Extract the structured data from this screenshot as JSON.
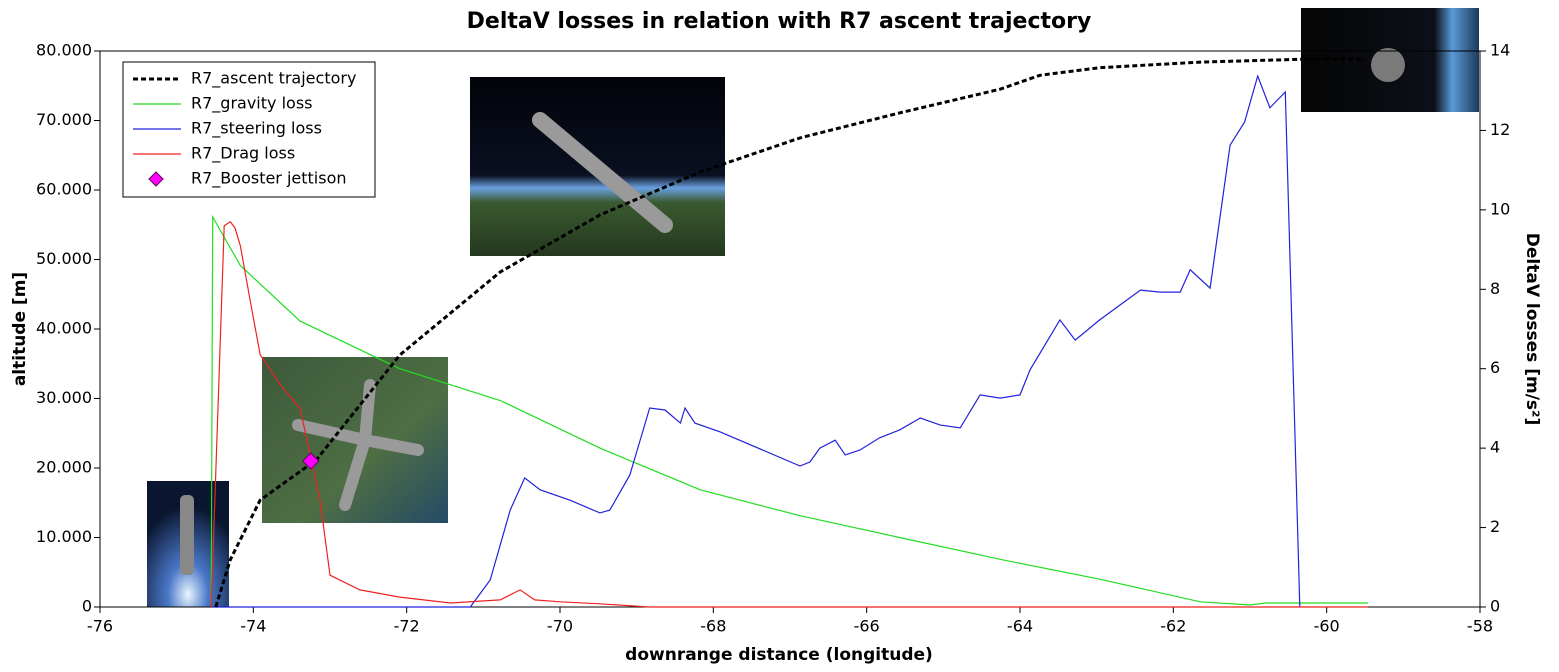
{
  "chart_data": {
    "type": "line",
    "title": "DeltaV losses in relation with R7 ascent trajectory",
    "xlabel": "downrange distance (longitude)",
    "ylabel": "altitude [m]",
    "y2label": "DeltaV losses [m/s²]",
    "xlim": [
      -76,
      -58
    ],
    "xticks": [
      -76,
      -74,
      -72,
      -70,
      -68,
      -66,
      -64,
      -62,
      -60,
      -58
    ],
    "ylim": [
      0,
      80000
    ],
    "yticks": [
      0,
      {
        "value": 10000,
        "label": "10.000"
      },
      {
        "value": 20000,
        "label": "20.000"
      },
      {
        "value": 30000,
        "label": "30.000"
      },
      {
        "value": 40000,
        "label": "40.000"
      },
      {
        "value": 50000,
        "label": "50.000"
      },
      {
        "value": 60000,
        "label": "60.000"
      },
      {
        "value": 70000,
        "label": "70.000"
      },
      {
        "value": 80000,
        "label": "80.000"
      }
    ],
    "y2lim": [
      0,
      14
    ],
    "y2ticks": [
      0,
      2,
      4,
      6,
      8,
      10,
      12,
      14
    ],
    "legend": "upper left",
    "series": [
      {
        "name": "R7_ascent trajectory",
        "color": "#000000",
        "dash": true,
        "x": [
          -74.49,
          -74.3,
          -73.91,
          -73.18,
          -72.09,
          -70.78,
          -69.48,
          -68.17,
          -66.87,
          -65.57,
          -64.26,
          -63.74,
          -62.96,
          -61.65,
          -60.35,
          -59.5
        ],
        "values": [
          0,
          6800,
          15400,
          21150,
          36260,
          48200,
          56400,
          62600,
          67500,
          71100,
          74500,
          76500,
          77600,
          78400,
          78800,
          78800
        ]
      },
      {
        "name": "R7_gravity loss",
        "color": "#22dd22",
        "axis": "y2",
        "x": [
          -74.55,
          -74.53,
          -74.17,
          -73.39,
          -72.09,
          -70.78,
          -69.48,
          -68.17,
          -66.87,
          -65.57,
          -64.26,
          -62.96,
          -61.65,
          -61.0,
          -60.8,
          -59.46
        ],
        "values": [
          0,
          9.82,
          8.6,
          7.2,
          6.0,
          5.2,
          4.0,
          2.95,
          2.3,
          1.75,
          1.2,
          0.7,
          0.13,
          0.05,
          0.1,
          0.1
        ]
      },
      {
        "name": "R7_steering loss",
        "color": "#2222dd",
        "axis": "y2",
        "x": [
          -74.55,
          -71.17,
          -70.91,
          -70.65,
          -70.46,
          -70.26,
          -69.87,
          -69.48,
          -69.35,
          -69.09,
          -68.83,
          -68.63,
          -68.43,
          -68.37,
          -68.24,
          -67.91,
          -66.87,
          -66.74,
          -66.61,
          -66.41,
          -66.28,
          -66.09,
          -65.83,
          -65.57,
          -65.3,
          -65.04,
          -64.78,
          -64.52,
          -64.26,
          -64.0,
          -63.87,
          -63.48,
          -63.28,
          -62.96,
          -62.43,
          -62.17,
          -61.91,
          -61.78,
          -61.52,
          -61.26,
          -61.07,
          -60.9,
          -60.74,
          -60.54,
          -60.35
        ],
        "values": [
          0,
          0,
          0.68,
          2.44,
          3.25,
          2.95,
          2.69,
          2.37,
          2.44,
          3.32,
          5.01,
          4.96,
          4.63,
          5.01,
          4.63,
          4.41,
          3.55,
          3.65,
          4.0,
          4.2,
          3.83,
          3.95,
          4.26,
          4.46,
          4.76,
          4.58,
          4.51,
          5.34,
          5.26,
          5.34,
          5.97,
          7.23,
          6.72,
          7.23,
          7.98,
          7.93,
          7.93,
          8.49,
          8.03,
          11.63,
          12.21,
          13.37,
          12.57,
          12.97,
          0
        ]
      },
      {
        "name": "R7_Drag loss",
        "color": "#ee2222",
        "axis": "y2",
        "x": [
          -74.55,
          -74.38,
          -74.3,
          -74.24,
          -74.17,
          -74.04,
          -73.91,
          -73.65,
          -73.39,
          -73.13,
          -73.0,
          -72.61,
          -72.09,
          -71.43,
          -70.78,
          -70.52,
          -70.33,
          -70.0,
          -69.48,
          -68.83,
          -59.46
        ],
        "values": [
          0,
          9.6,
          9.7,
          9.55,
          9.1,
          7.7,
          6.35,
          5.6,
          5.0,
          2.7,
          0.8,
          0.43,
          0.25,
          0.1,
          0.18,
          0.43,
          0.18,
          0.13,
          0.08,
          0,
          0
        ]
      },
      {
        "name": "R7_Booster jettison",
        "color": "#ff00ff",
        "marker": "diamond",
        "x": [
          -73.25
        ],
        "values": [
          21000
        ]
      }
    ]
  }
}
